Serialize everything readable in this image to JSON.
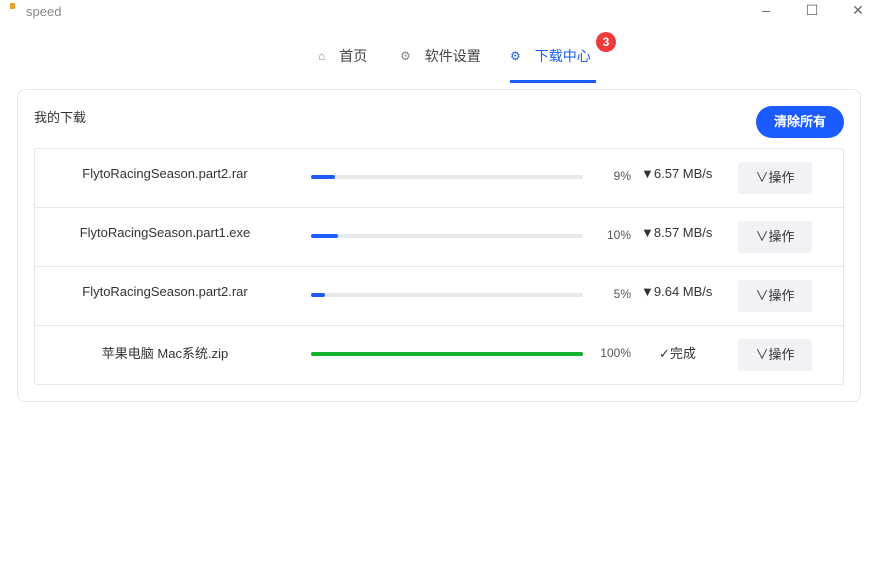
{
  "window": {
    "title": "speed",
    "minimize": "–",
    "maximize": "☐",
    "close": "✕"
  },
  "nav": {
    "tabs": [
      {
        "label": "首页",
        "icon": "home-icon",
        "glyph": "⌂"
      },
      {
        "label": "软件设置",
        "icon": "gear-icon",
        "glyph": "⚙"
      },
      {
        "label": "下载中心",
        "icon": "gear-icon",
        "glyph": "⚙",
        "active": true,
        "badge": "3"
      }
    ]
  },
  "colors": {
    "accent": "#1a5cff",
    "complete": "#14b02e",
    "badge": "#f03a3a"
  },
  "downloads": {
    "title": "我的下载",
    "clear_label": "清除所有",
    "items": [
      {
        "name": "FlytoRacingSeason.part2.rar",
        "progress": 9,
        "percent": "9%",
        "status": "▼6.57 MB/s",
        "action": "∨操作"
      },
      {
        "name": "FlytoRacingSeason.part1.exe",
        "progress": 10,
        "percent": "10%",
        "status": "▼8.57 MB/s",
        "action": "∨操作"
      },
      {
        "name": "FlytoRacingSeason.part2.rar",
        "progress": 5,
        "percent": "5%",
        "status": "▼9.64 MB/s",
        "action": "∨操作"
      },
      {
        "name": "苹果电脑 Mac系统.zip",
        "progress": 100,
        "percent": "100%",
        "status": "✓完成",
        "action": "∨操作",
        "complete": true
      }
    ]
  }
}
